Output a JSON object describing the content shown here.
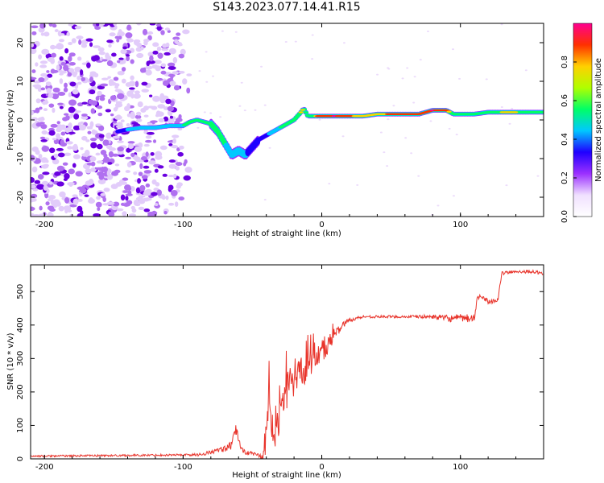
{
  "title": "S143.2023.077.14.41.R15",
  "colors": {
    "snr_line": "#e8332a",
    "frame": "#000000"
  },
  "chart_data": [
    {
      "type": "heatmap",
      "xlabel": "Height of straight line (km)",
      "ylabel": "Frequency (Hz)",
      "xlim": [
        -210,
        160
      ],
      "ylim": [
        -25,
        25
      ],
      "x_ticks": [
        -200,
        -100,
        0,
        100
      ],
      "y_ticks": [
        -20,
        -10,
        0,
        10,
        20
      ],
      "colorbar": {
        "label": "Normalized spectral amplitude",
        "range": [
          0,
          1
        ],
        "ticks": [
          0.0,
          0.2,
          0.4,
          0.6,
          0.8
        ],
        "colormap": [
          "#ffffff",
          "#f0e0ff",
          "#9b30ff",
          "#1f00ff",
          "#00c8ff",
          "#00ff66",
          "#b0ff00",
          "#ffd000",
          "#ff3000",
          "#ff0090"
        ]
      },
      "noise_region_x": [
        -210,
        -95
      ],
      "ridge": {
        "x": [
          -147,
          -140,
          -130,
          -120,
          -110,
          -100,
          -95,
          -90,
          -85,
          -80,
          -75,
          -70,
          -65,
          -60,
          -55,
          -50,
          -45,
          -40,
          -35,
          -30,
          -25,
          -20,
          -15,
          -13,
          -10,
          -5,
          0,
          10,
          20,
          30,
          40,
          50,
          60,
          70,
          80,
          90,
          95,
          100,
          110,
          120,
          130,
          140,
          150,
          160
        ],
        "frequency": [
          -3,
          -2.5,
          -2,
          -2,
          -1.5,
          -1.5,
          -0.5,
          0,
          -0.5,
          -1,
          -3,
          -6,
          -9,
          -8,
          -9,
          -7,
          -5,
          -4,
          -3,
          -2,
          -1,
          0,
          2,
          3,
          1,
          1,
          1,
          1,
          1,
          1,
          1.5,
          1.5,
          1.5,
          1.5,
          2.5,
          2.5,
          1.5,
          1.5,
          1.5,
          2,
          2,
          2,
          2,
          2
        ],
        "amplitude": [
          0.3,
          0.4,
          0.4,
          0.4,
          0.4,
          0.5,
          0.5,
          0.5,
          0.5,
          0.5,
          0.5,
          0.5,
          0.45,
          0.45,
          0.4,
          0.35,
          0.3,
          0.35,
          0.45,
          0.5,
          0.55,
          0.7,
          0.8,
          0.8,
          0.6,
          0.8,
          0.9,
          0.95,
          0.85,
          0.8,
          0.8,
          0.85,
          0.9,
          0.85,
          0.95,
          0.9,
          0.7,
          0.7,
          0.8,
          0.75,
          0.8,
          0.8,
          0.75,
          0.7
        ]
      }
    },
    {
      "type": "line",
      "xlabel": "Height of straight line (km)",
      "ylabel": "SNR (10 * v/v)",
      "xlim": [
        -210,
        160
      ],
      "ylim": [
        0,
        580
      ],
      "x_ticks": [
        -200,
        -100,
        0,
        100
      ],
      "y_ticks": [
        0,
        100,
        200,
        300,
        400,
        500
      ],
      "x": [
        -210,
        -150,
        -100,
        -90,
        -85,
        -80,
        -75,
        -70,
        -65,
        -62,
        -60,
        -58,
        -55,
        -50,
        -45,
        -42,
        -40,
        -38,
        -35,
        -32,
        -30,
        -25,
        -20,
        -15,
        -10,
        -5,
        0,
        5,
        10,
        15,
        20,
        25,
        30,
        40,
        50,
        60,
        70,
        80,
        90,
        100,
        110,
        112,
        115,
        120,
        127,
        130,
        140,
        150,
        160
      ],
      "values": [
        8,
        10,
        12,
        12,
        15,
        20,
        25,
        30,
        40,
        90,
        60,
        30,
        20,
        15,
        10,
        5,
        60,
        180,
        60,
        90,
        140,
        200,
        230,
        260,
        280,
        300,
        310,
        340,
        375,
        400,
        415,
        420,
        425,
        425,
        425,
        425,
        425,
        425,
        420,
        420,
        420,
        475,
        490,
        470,
        475,
        555,
        560,
        560,
        555
      ],
      "noise_amplitude": [
        5,
        6,
        6,
        8,
        10,
        12,
        14,
        18,
        25,
        30,
        25,
        15,
        15,
        10,
        15,
        40,
        120,
        150,
        90,
        100,
        110,
        120,
        90,
        100,
        90,
        70,
        60,
        40,
        30,
        20,
        12,
        10,
        8,
        8,
        8,
        8,
        10,
        12,
        20,
        25,
        25,
        15,
        15,
        15,
        15,
        10,
        10,
        10,
        10
      ]
    }
  ]
}
